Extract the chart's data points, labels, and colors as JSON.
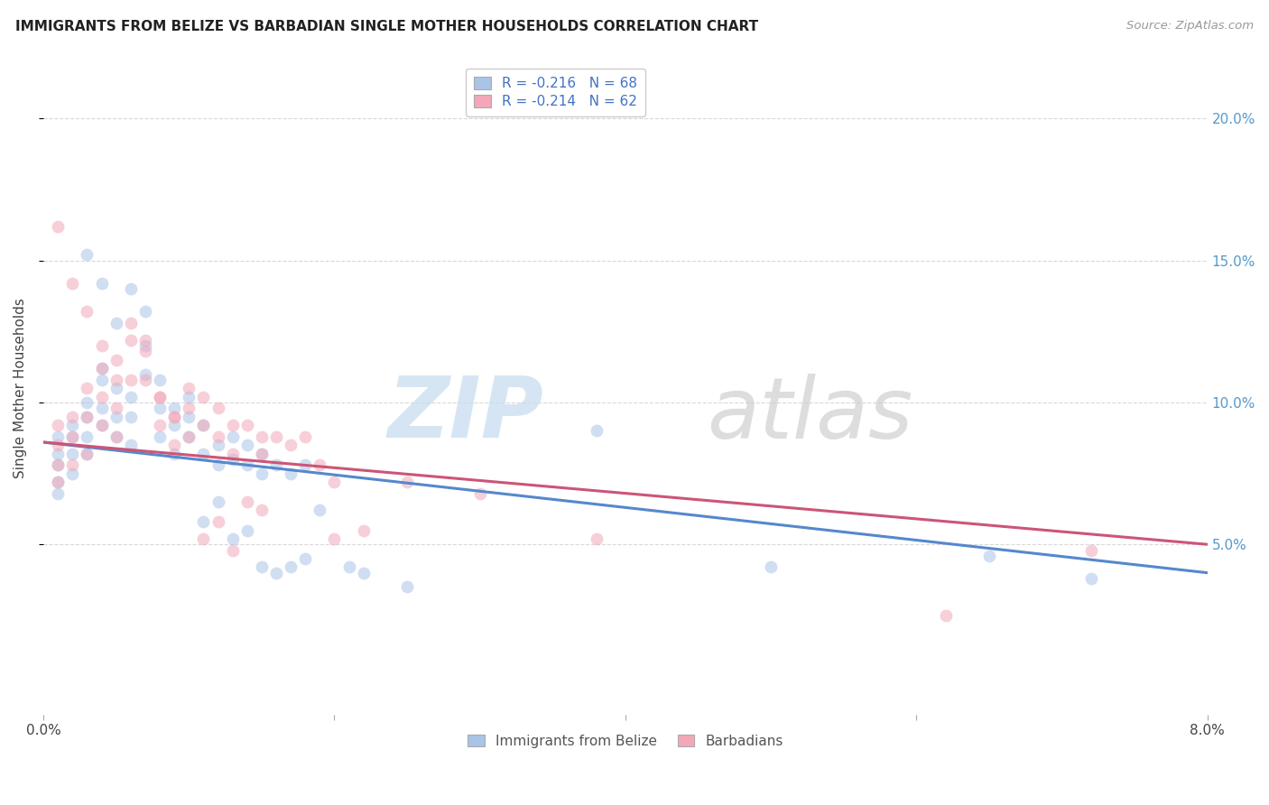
{
  "title": "IMMIGRANTS FROM BELIZE VS BARBADIAN SINGLE MOTHER HOUSEHOLDS CORRELATION CHART",
  "source": "Source: ZipAtlas.com",
  "ylabel": "Single Mother Households",
  "legend_entry1": "R = -0.216   N = 68",
  "legend_entry2": "R = -0.214   N = 62",
  "legend_label1": "Immigrants from Belize",
  "legend_label2": "Barbadians",
  "color_blue": "#aac4e8",
  "color_pink": "#f2a8b8",
  "watermark_zip": "ZIP",
  "watermark_atlas": "atlas",
  "blue_scatter_x": [
    0.001,
    0.001,
    0.001,
    0.001,
    0.001,
    0.002,
    0.002,
    0.002,
    0.002,
    0.003,
    0.003,
    0.003,
    0.003,
    0.004,
    0.004,
    0.004,
    0.004,
    0.005,
    0.005,
    0.005,
    0.006,
    0.006,
    0.006,
    0.007,
    0.007,
    0.008,
    0.008,
    0.009,
    0.009,
    0.01,
    0.01,
    0.011,
    0.011,
    0.012,
    0.012,
    0.013,
    0.013,
    0.014,
    0.014,
    0.015,
    0.015,
    0.016,
    0.017,
    0.018,
    0.019,
    0.003,
    0.004,
    0.005,
    0.006,
    0.007,
    0.008,
    0.009,
    0.01,
    0.011,
    0.012,
    0.013,
    0.014,
    0.015,
    0.016,
    0.017,
    0.018,
    0.021,
    0.022,
    0.025,
    0.038,
    0.05,
    0.065,
    0.072
  ],
  "blue_scatter_y": [
    0.088,
    0.082,
    0.078,
    0.072,
    0.068,
    0.092,
    0.088,
    0.082,
    0.075,
    0.1,
    0.095,
    0.088,
    0.082,
    0.112,
    0.108,
    0.098,
    0.092,
    0.105,
    0.095,
    0.088,
    0.102,
    0.095,
    0.085,
    0.12,
    0.11,
    0.098,
    0.088,
    0.092,
    0.082,
    0.095,
    0.088,
    0.092,
    0.082,
    0.085,
    0.078,
    0.088,
    0.08,
    0.085,
    0.078,
    0.082,
    0.075,
    0.078,
    0.075,
    0.078,
    0.062,
    0.152,
    0.142,
    0.128,
    0.14,
    0.132,
    0.108,
    0.098,
    0.102,
    0.058,
    0.065,
    0.052,
    0.055,
    0.042,
    0.04,
    0.042,
    0.045,
    0.042,
    0.04,
    0.035,
    0.09,
    0.042,
    0.046,
    0.038
  ],
  "pink_scatter_x": [
    0.001,
    0.001,
    0.001,
    0.001,
    0.002,
    0.002,
    0.002,
    0.003,
    0.003,
    0.003,
    0.004,
    0.004,
    0.004,
    0.005,
    0.005,
    0.005,
    0.006,
    0.006,
    0.007,
    0.007,
    0.008,
    0.008,
    0.009,
    0.009,
    0.01,
    0.01,
    0.011,
    0.011,
    0.012,
    0.012,
    0.013,
    0.013,
    0.014,
    0.015,
    0.015,
    0.016,
    0.017,
    0.018,
    0.019,
    0.02,
    0.001,
    0.002,
    0.003,
    0.004,
    0.005,
    0.006,
    0.007,
    0.008,
    0.009,
    0.01,
    0.011,
    0.012,
    0.013,
    0.014,
    0.015,
    0.02,
    0.022,
    0.025,
    0.03,
    0.038,
    0.062,
    0.072
  ],
  "pink_scatter_y": [
    0.092,
    0.085,
    0.078,
    0.072,
    0.095,
    0.088,
    0.078,
    0.105,
    0.095,
    0.082,
    0.112,
    0.102,
    0.092,
    0.108,
    0.098,
    0.088,
    0.122,
    0.108,
    0.118,
    0.108,
    0.102,
    0.092,
    0.095,
    0.085,
    0.098,
    0.088,
    0.102,
    0.092,
    0.098,
    0.088,
    0.092,
    0.082,
    0.092,
    0.088,
    0.082,
    0.088,
    0.085,
    0.088,
    0.078,
    0.072,
    0.162,
    0.142,
    0.132,
    0.12,
    0.115,
    0.128,
    0.122,
    0.102,
    0.095,
    0.105,
    0.052,
    0.058,
    0.048,
    0.065,
    0.062,
    0.052,
    0.055,
    0.072,
    0.068,
    0.052,
    0.025,
    0.048
  ],
  "xlim": [
    0.0,
    0.08
  ],
  "ylim": [
    -0.01,
    0.22
  ],
  "yticks": [
    0.05,
    0.1,
    0.15,
    0.2
  ],
  "ytick_labels": [
    "5.0%",
    "10.0%",
    "15.0%",
    "20.0%"
  ],
  "xticks": [
    0.0,
    0.02,
    0.04,
    0.06,
    0.08
  ],
  "xtick_labels": [
    "0.0%",
    "",
    "",
    "",
    "8.0%"
  ],
  "blue_line_x": [
    0.0,
    0.08
  ],
  "blue_line_y": [
    0.086,
    0.04
  ],
  "pink_line_x": [
    0.0,
    0.08
  ],
  "pink_line_y": [
    0.086,
    0.05
  ],
  "grid_color": "#d8d8d8",
  "grid_linestyle": "--",
  "background_color": "#ffffff",
  "scatter_size": 100,
  "scatter_alpha": 0.55,
  "line_color_blue": "#5588cc",
  "line_color_pink": "#cc5577"
}
